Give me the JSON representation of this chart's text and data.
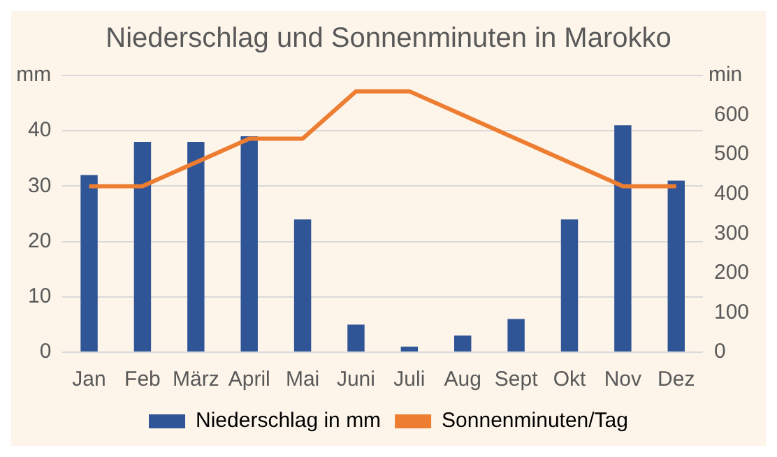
{
  "chart_data": {
    "type": "bar",
    "title": "Niederschlag und Sonnenminuten in Marokko",
    "ylabel": "mm",
    "y2label": "min",
    "categories": [
      "Jan",
      "Feb",
      "März",
      "April",
      "Mai",
      "Juni",
      "Juli",
      "Aug",
      "Sept",
      "Okt",
      "Nov",
      "Dez"
    ],
    "series": [
      {
        "name": "Niederschlag in mm",
        "color": "#2f5597",
        "values": [
          32,
          38,
          38,
          39,
          24,
          5,
          1,
          3,
          6,
          24,
          41,
          31
        ]
      },
      {
        "name": "Sonnenminuten/Tag",
        "type": "line",
        "axis": "y2",
        "color": "#ed7d31",
        "values": [
          420,
          420,
          480,
          540,
          540,
          660,
          660,
          600,
          540,
          480,
          420,
          420
        ]
      }
    ],
    "ylim": [
      0,
      50
    ],
    "yticks": [
      0,
      10,
      20,
      30,
      40,
      {
        "value": 50,
        "label": null
      }
    ],
    "y2lim": [
      0,
      700
    ],
    "y2ticks": [
      0,
      100,
      200,
      300,
      400,
      500,
      600
    ],
    "grid": "y",
    "legend": "bottom",
    "marker": "none"
  }
}
